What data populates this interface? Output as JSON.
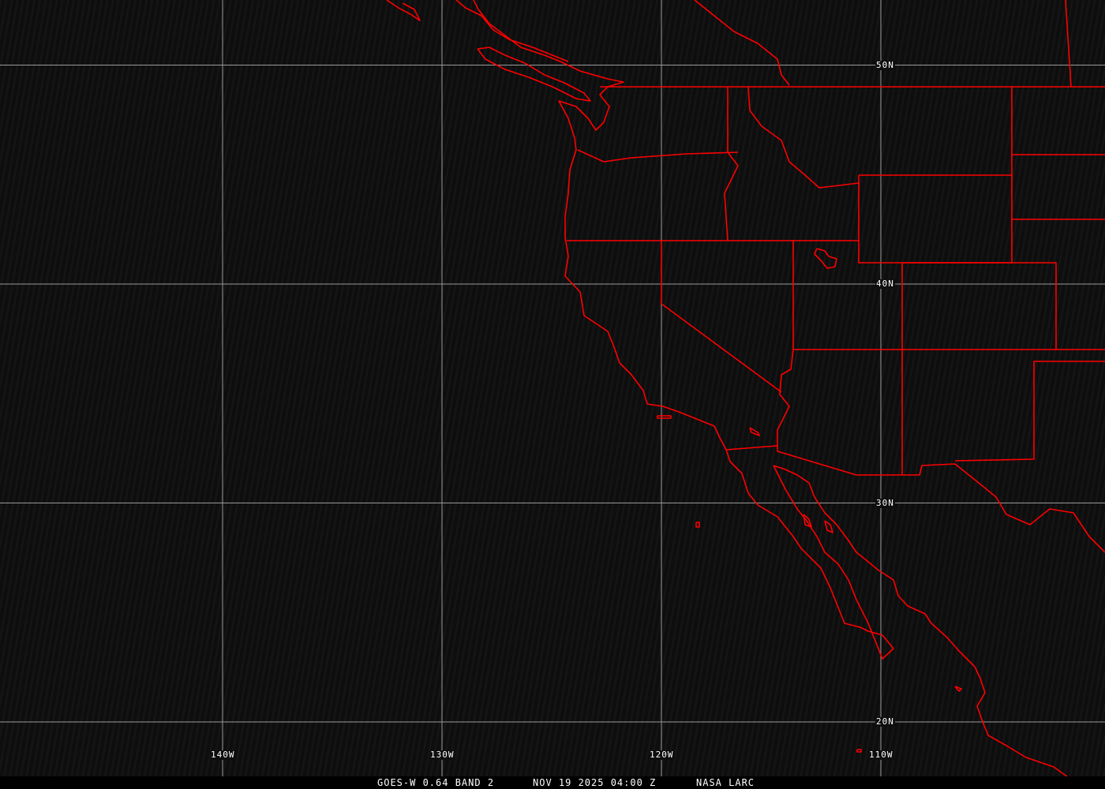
{
  "caption": {
    "satellite": "GOES-W 0.64 BAND 2",
    "datetime": "NOV 19 2025 04:00 Z",
    "source": "NASA LARC"
  },
  "grid": {
    "latitudes": [
      {
        "value": 50,
        "label": "50N"
      },
      {
        "value": 40,
        "label": "40N"
      },
      {
        "value": 30,
        "label": "30N"
      },
      {
        "value": 20,
        "label": "20N"
      }
    ],
    "longitudes": [
      {
        "value": -140,
        "label": "140W"
      },
      {
        "value": -130,
        "label": "130W"
      },
      {
        "value": -120,
        "label": "120W"
      },
      {
        "value": -110,
        "label": "110W"
      }
    ]
  },
  "colors": {
    "grid": "#9a9a9a",
    "boundaries": "#ff0000",
    "background": "#0e0e0e",
    "text": "#ffffff"
  }
}
